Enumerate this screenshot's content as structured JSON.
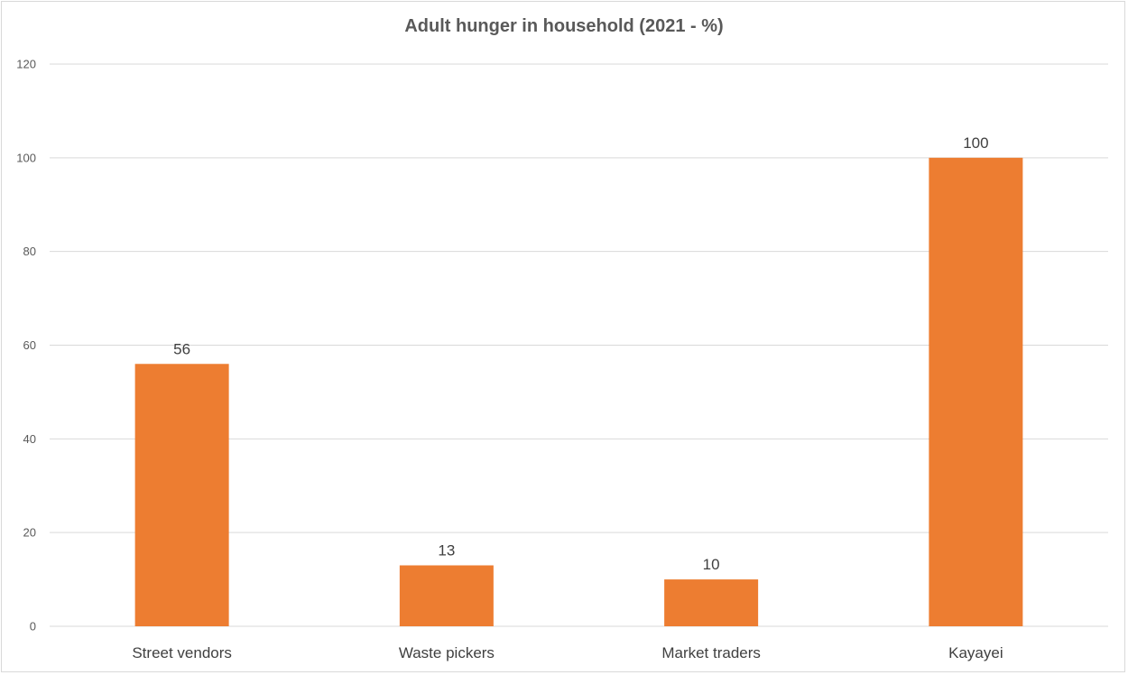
{
  "chart_data": {
    "type": "bar",
    "title": "Adult hunger in household (2021 - %)",
    "categories": [
      "Street vendors",
      "Waste pickers",
      "Market traders",
      "Kayayei"
    ],
    "values": [
      56,
      13,
      10,
      100
    ],
    "data_labels": [
      "56",
      "13",
      "10",
      "100"
    ],
    "xlabel": "",
    "ylabel": "",
    "ylim": [
      0,
      120
    ],
    "yticks": [
      0,
      20,
      40,
      60,
      80,
      100,
      120
    ],
    "grid": true,
    "legend": "none",
    "bar_color": "#ED7D31",
    "gridline_color": "#D9D9D9",
    "text_color": "#595959"
  }
}
